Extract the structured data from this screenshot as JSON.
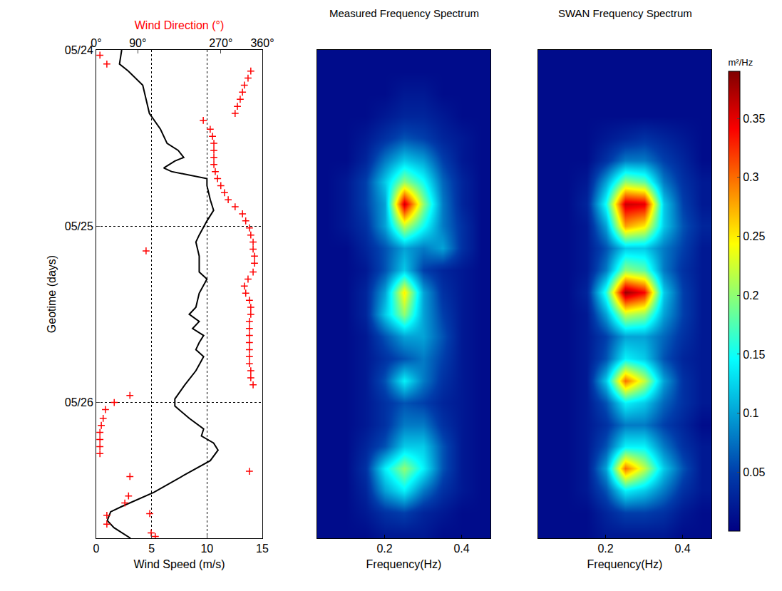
{
  "chart_data": [
    {
      "type": "line",
      "xlabel": "Wind Speed (m/s)",
      "ylabel": "Geotime (days)",
      "x2label": "Wind Direction (°)",
      "xlim": [
        0,
        15
      ],
      "xticks": [
        0,
        5,
        10,
        15
      ],
      "x2lim": [
        0,
        360
      ],
      "x2ticks": [
        {
          "value": 0,
          "label": "0°"
        },
        {
          "value": 90,
          "label": "90°"
        },
        {
          "value": 270,
          "label": "270°"
        },
        {
          "value": 360,
          "label": "360°"
        }
      ],
      "ylim": [
        26.77,
        24
      ],
      "yticks": [
        {
          "value": 24,
          "label": "05/24"
        },
        {
          "value": 25,
          "label": "05/25"
        },
        {
          "value": 26,
          "label": "05/26"
        }
      ],
      "grid": true,
      "series": [
        {
          "type": "line",
          "color": "#000000",
          "line_style": "solid",
          "x": [
            2.3,
            2.1,
            2.9,
            4.2,
            4.5,
            4.8,
            5.8,
            6.4,
            7.4,
            7.9,
            7.1,
            6.1,
            6.8,
            10.0,
            10.0,
            10.3,
            10.6,
            10.0,
            9.3,
            9.0,
            9.3,
            9.3,
            10.0,
            9.3,
            9.0,
            8.4,
            9.3,
            8.7,
            9.7,
            9.3,
            9.0,
            9.7,
            9.0,
            8.0,
            7.1,
            7.1,
            8.4,
            9.7,
            9.5,
            10.6,
            11.0,
            10.3,
            8.0,
            5.2,
            2.3,
            1.3,
            1.0,
            1.6,
            3.1
          ],
          "y": [
            24.0,
            24.08,
            24.12,
            24.2,
            24.28,
            24.36,
            24.45,
            24.53,
            24.57,
            24.61,
            24.63,
            24.67,
            24.69,
            24.73,
            24.77,
            24.85,
            24.91,
            24.97,
            25.05,
            25.09,
            25.17,
            25.26,
            25.3,
            25.38,
            25.46,
            25.5,
            25.54,
            25.58,
            25.62,
            25.66,
            25.7,
            25.74,
            25.82,
            25.9,
            25.98,
            26.02,
            26.09,
            26.15,
            26.19,
            26.23,
            26.27,
            26.33,
            26.41,
            26.51,
            26.59,
            26.62,
            26.67,
            26.71,
            26.77
          ]
        },
        {
          "type": "scatter",
          "color": "#ff0000",
          "marker": "plus",
          "axis": "x2",
          "x": [
            8,
            23,
            335,
            329,
            321,
            317,
            312,
            306,
            301,
            232,
            247,
            252,
            255,
            255,
            255,
            255,
            258,
            263,
            270,
            278,
            286,
            301,
            317,
            324,
            332,
            335,
            340,
            340,
            108,
            343,
            343,
            340,
            329,
            321,
            324,
            332,
            335,
            335,
            332,
            332,
            332,
            332,
            332,
            332,
            332,
            335,
            335,
            340,
            73,
            39,
            20,
            15,
            11,
            8,
            8,
            8,
            8,
            332,
            73,
            70,
            62,
            116,
            23,
            23,
            119,
            128
          ],
          "y": [
            24.03,
            24.08,
            24.12,
            24.16,
            24.2,
            24.24,
            24.28,
            24.32,
            24.36,
            24.4,
            24.45,
            24.49,
            24.53,
            24.57,
            24.61,
            24.65,
            24.69,
            24.73,
            24.77,
            24.81,
            24.85,
            24.89,
            24.93,
            24.97,
            25.01,
            25.05,
            25.09,
            25.13,
            25.14,
            25.17,
            25.21,
            25.26,
            25.3,
            25.34,
            25.38,
            25.42,
            25.46,
            25.5,
            25.54,
            25.58,
            25.62,
            25.66,
            25.7,
            25.74,
            25.78,
            25.82,
            25.86,
            25.9,
            25.96,
            26.0,
            26.04,
            26.09,
            26.13,
            26.17,
            26.21,
            26.25,
            26.29,
            26.39,
            26.42,
            26.53,
            26.57,
            26.63,
            26.64,
            26.69,
            26.74,
            26.76
          ]
        }
      ]
    },
    {
      "type": "heatmap",
      "title": "Measured Frequency Spectrum",
      "xlabel": "Frequency(Hz)",
      "xlim": [
        0.025,
        0.475
      ],
      "xticks": [
        0.2,
        0.4
      ],
      "ylim": [
        26.77,
        24
      ],
      "tick_labels": "x",
      "zlim": [
        0,
        0.39
      ],
      "x": [
        0.05,
        0.1,
        0.15,
        0.2,
        0.25,
        0.3,
        0.35,
        0.4,
        0.45
      ],
      "y": [
        24,
        24.125,
        24.25,
        24.375,
        24.5,
        24.625,
        24.75,
        24.875,
        25,
        25.125,
        25.25,
        25.375,
        25.5,
        25.625,
        25.75,
        25.875,
        26,
        26.125,
        26.25,
        26.375,
        26.5,
        26.625,
        26.75
      ],
      "z": [
        [
          0.01,
          0.01,
          0.01,
          0.01,
          0.01,
          0.01,
          0.01,
          0.01,
          0.01
        ],
        [
          0.01,
          0.01,
          0.01,
          0.01,
          0.01,
          0.01,
          0.01,
          0.01,
          0.01
        ],
        [
          0.01,
          0.01,
          0.01,
          0.01,
          0.02,
          0.02,
          0.01,
          0.01,
          0.01
        ],
        [
          0.01,
          0.01,
          0.01,
          0.02,
          0.03,
          0.03,
          0.02,
          0.01,
          0.01
        ],
        [
          0.01,
          0.01,
          0.02,
          0.04,
          0.06,
          0.05,
          0.03,
          0.02,
          0.01
        ],
        [
          0.01,
          0.01,
          0.03,
          0.08,
          0.12,
          0.1,
          0.05,
          0.02,
          0.01
        ],
        [
          0.01,
          0.02,
          0.05,
          0.12,
          0.2,
          0.15,
          0.07,
          0.03,
          0.01
        ],
        [
          0.01,
          0.02,
          0.05,
          0.1,
          0.36,
          0.2,
          0.08,
          0.03,
          0.01
        ],
        [
          0.01,
          0.02,
          0.04,
          0.1,
          0.22,
          0.15,
          0.08,
          0.04,
          0.01
        ],
        [
          0.01,
          0.01,
          0.03,
          0.06,
          0.1,
          0.08,
          0.1,
          0.04,
          0.01
        ],
        [
          0.01,
          0.01,
          0.02,
          0.06,
          0.12,
          0.05,
          0.03,
          0.02,
          0.01
        ],
        [
          0.01,
          0.01,
          0.03,
          0.1,
          0.25,
          0.1,
          0.04,
          0.02,
          0.01
        ],
        [
          0.01,
          0.01,
          0.03,
          0.12,
          0.2,
          0.1,
          0.05,
          0.02,
          0.01
        ],
        [
          0.01,
          0.01,
          0.02,
          0.06,
          0.1,
          0.1,
          0.06,
          0.02,
          0.01
        ],
        [
          0.01,
          0.01,
          0.02,
          0.04,
          0.06,
          0.08,
          0.05,
          0.02,
          0.01
        ],
        [
          0.01,
          0.01,
          0.02,
          0.06,
          0.14,
          0.08,
          0.04,
          0.02,
          0.01
        ],
        [
          0.01,
          0.01,
          0.02,
          0.04,
          0.06,
          0.05,
          0.03,
          0.02,
          0.01
        ],
        [
          0.01,
          0.01,
          0.02,
          0.04,
          0.08,
          0.08,
          0.04,
          0.02,
          0.01
        ],
        [
          0.01,
          0.01,
          0.03,
          0.06,
          0.12,
          0.12,
          0.06,
          0.02,
          0.01
        ],
        [
          0.01,
          0.01,
          0.04,
          0.14,
          0.2,
          0.14,
          0.06,
          0.02,
          0.01
        ],
        [
          0.01,
          0.01,
          0.03,
          0.1,
          0.14,
          0.08,
          0.04,
          0.02,
          0.01
        ],
        [
          0.01,
          0.01,
          0.02,
          0.04,
          0.05,
          0.03,
          0.02,
          0.01,
          0.01
        ],
        [
          0.01,
          0.01,
          0.01,
          0.02,
          0.02,
          0.02,
          0.01,
          0.01,
          0.01
        ]
      ]
    },
    {
      "type": "heatmap",
      "title": "SWAN Frequency Spectrum",
      "xlabel": "Frequency(Hz)",
      "xlim": [
        0.025,
        0.475
      ],
      "xticks": [
        0.2,
        0.4
      ],
      "ylim": [
        26.77,
        24
      ],
      "tick_labels": "x",
      "zlim": [
        0,
        0.39
      ],
      "colorbar_ticks": [
        0.05,
        0.1,
        0.15,
        0.2,
        0.25,
        0.3,
        0.35
      ],
      "colorbar_title": "m²/Hz",
      "x": [
        0.05,
        0.1,
        0.15,
        0.2,
        0.25,
        0.3,
        0.35,
        0.4,
        0.45
      ],
      "y": [
        24,
        24.125,
        24.25,
        24.375,
        24.5,
        24.625,
        24.75,
        24.875,
        25,
        25.125,
        25.25,
        25.375,
        25.5,
        25.625,
        25.75,
        25.875,
        26,
        26.125,
        26.25,
        26.375,
        26.5,
        26.625,
        26.75
      ],
      "z": [
        [
          0.01,
          0.01,
          0.01,
          0.01,
          0.01,
          0.01,
          0.01,
          0.01,
          0.01
        ],
        [
          0.01,
          0.01,
          0.01,
          0.01,
          0.01,
          0.01,
          0.01,
          0.01,
          0.01
        ],
        [
          0.01,
          0.01,
          0.01,
          0.01,
          0.01,
          0.01,
          0.01,
          0.01,
          0.01
        ],
        [
          0.01,
          0.01,
          0.01,
          0.01,
          0.01,
          0.01,
          0.01,
          0.01,
          0.01
        ],
        [
          0.01,
          0.01,
          0.01,
          0.02,
          0.03,
          0.04,
          0.03,
          0.02,
          0.01
        ],
        [
          0.01,
          0.01,
          0.01,
          0.04,
          0.08,
          0.08,
          0.05,
          0.03,
          0.01
        ],
        [
          0.01,
          0.01,
          0.02,
          0.1,
          0.2,
          0.18,
          0.08,
          0.04,
          0.02
        ],
        [
          0.01,
          0.01,
          0.03,
          0.15,
          0.36,
          0.35,
          0.12,
          0.05,
          0.02
        ],
        [
          0.01,
          0.01,
          0.02,
          0.1,
          0.28,
          0.25,
          0.12,
          0.06,
          0.03
        ],
        [
          0.01,
          0.01,
          0.02,
          0.06,
          0.12,
          0.12,
          0.08,
          0.05,
          0.02
        ],
        [
          0.01,
          0.01,
          0.02,
          0.08,
          0.2,
          0.18,
          0.08,
          0.04,
          0.02
        ],
        [
          0.01,
          0.01,
          0.03,
          0.16,
          0.38,
          0.34,
          0.12,
          0.05,
          0.02
        ],
        [
          0.01,
          0.01,
          0.02,
          0.1,
          0.22,
          0.2,
          0.1,
          0.05,
          0.02
        ],
        [
          0.01,
          0.01,
          0.02,
          0.05,
          0.1,
          0.1,
          0.07,
          0.04,
          0.02
        ],
        [
          0.01,
          0.01,
          0.02,
          0.06,
          0.14,
          0.12,
          0.06,
          0.03,
          0.02
        ],
        [
          0.01,
          0.01,
          0.02,
          0.12,
          0.3,
          0.22,
          0.1,
          0.04,
          0.02
        ],
        [
          0.01,
          0.01,
          0.02,
          0.06,
          0.14,
          0.12,
          0.07,
          0.04,
          0.02
        ],
        [
          0.01,
          0.01,
          0.02,
          0.04,
          0.08,
          0.08,
          0.05,
          0.03,
          0.01
        ],
        [
          0.01,
          0.01,
          0.02,
          0.06,
          0.14,
          0.14,
          0.08,
          0.04,
          0.02
        ],
        [
          0.01,
          0.01,
          0.02,
          0.1,
          0.3,
          0.22,
          0.12,
          0.06,
          0.02
        ],
        [
          0.01,
          0.01,
          0.02,
          0.06,
          0.14,
          0.12,
          0.08,
          0.04,
          0.02
        ],
        [
          0.01,
          0.01,
          0.01,
          0.03,
          0.05,
          0.05,
          0.04,
          0.02,
          0.01
        ],
        [
          0.01,
          0.01,
          0.01,
          0.02,
          0.02,
          0.02,
          0.02,
          0.01,
          0.01
        ]
      ]
    }
  ]
}
